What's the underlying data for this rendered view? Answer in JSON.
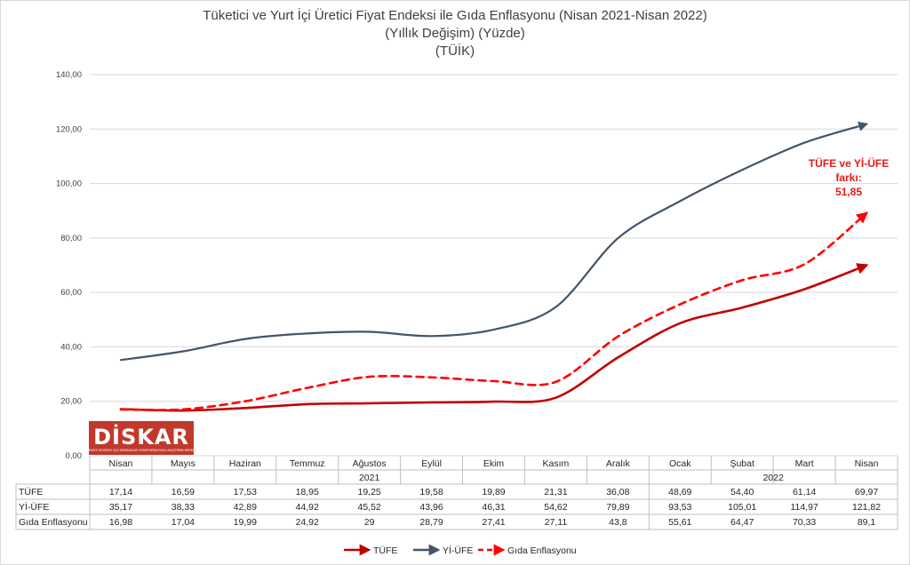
{
  "chart_data": {
    "type": "line",
    "title": [
      "Tüketici ve Yurt İçi Üretici Fiyat Endeksi ile Gıda Enflasyonu (Nisan 2021-Nisan 2022)",
      "(Yıllık Değişim) (Yüzde)",
      "(TÜİK)"
    ],
    "ylim": [
      0,
      140
    ],
    "yticks": [
      "0,00",
      "20,00",
      "40,00",
      "60,00",
      "80,00",
      "100,00",
      "120,00",
      "140,00"
    ],
    "categories": [
      "Nisan",
      "Mayıs",
      "Haziran",
      "Temmuz",
      "Ağustos",
      "Eylül",
      "Ekim",
      "Kasım",
      "Aralık",
      "Ocak",
      "Şubat",
      "Mart",
      "Nisan"
    ],
    "years": [
      {
        "label": "2021",
        "span": [
          0,
          8
        ]
      },
      {
        "label": "2022",
        "span": [
          9,
          12
        ]
      }
    ],
    "series": [
      {
        "name": "TÜFE",
        "color": "#c00000",
        "style": "solid",
        "values": [
          17.14,
          16.59,
          17.53,
          18.95,
          19.25,
          19.58,
          19.89,
          21.31,
          36.08,
          48.69,
          54.4,
          61.14,
          69.97
        ],
        "labels": [
          "17,14",
          "16,59",
          "17,53",
          "18,95",
          "19,25",
          "19,58",
          "19,89",
          "21,31",
          "36,08",
          "48,69",
          "54,40",
          "61,14",
          "69,97"
        ]
      },
      {
        "name": "Yİ-ÜFE",
        "color": "#44546a",
        "style": "solid",
        "values": [
          35.17,
          38.33,
          42.89,
          44.92,
          45.52,
          43.96,
          46.31,
          54.62,
          79.89,
          93.53,
          105.01,
          114.97,
          121.82
        ],
        "labels": [
          "35,17",
          "38,33",
          "42,89",
          "44,92",
          "45,52",
          "43,96",
          "46,31",
          "54,62",
          "79,89",
          "93,53",
          "105,01",
          "114,97",
          "121,82"
        ]
      },
      {
        "name": "Gıda Enflasyonu",
        "color": "#ff0000",
        "style": "dashed",
        "values": [
          16.98,
          17.04,
          19.99,
          24.92,
          29,
          28.79,
          27.41,
          27.11,
          43.8,
          55.61,
          64.47,
          70.33,
          89.1
        ],
        "labels": [
          "16,98",
          "17,04",
          "19,99",
          "24,92",
          "29",
          "28,79",
          "27,41",
          "27,11",
          "43,8",
          "55,61",
          "64,47",
          "70,33",
          "89,1"
        ]
      }
    ],
    "annotation": {
      "lines": [
        "TÜFE ve Yİ-ÜFE",
        "farkı:",
        "51,85"
      ],
      "color": "#e01b1b"
    },
    "legend": {
      "placement": "bottom-center"
    },
    "grid": true
  },
  "logo": {
    "text": "DİSKAR",
    "subtext": "TÜRKİYE DEVRİMCİ İŞÇİ SENDİKALARI KONFEDERASYONU ARAŞTIRMA MERKEZİ",
    "color": "#c0392b"
  }
}
